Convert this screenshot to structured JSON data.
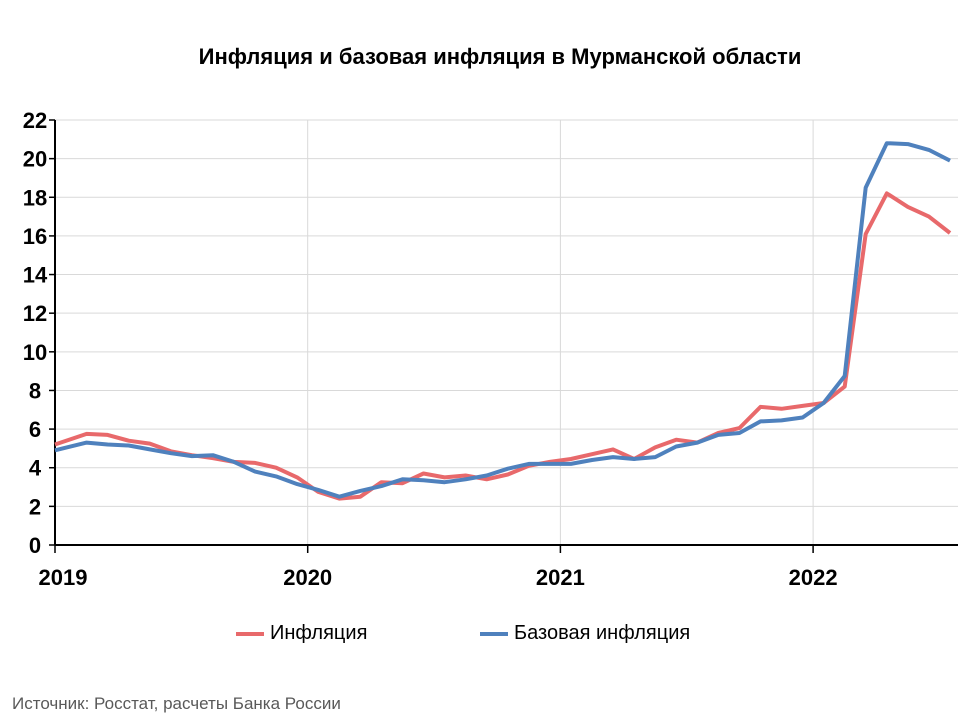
{
  "chart_data": {
    "type": "line",
    "title": "Инфляция и базовая инфляция в Мурманской области",
    "xlabel": "",
    "ylabel": "",
    "ylim": [
      0,
      22
    ],
    "yticks": [
      0,
      2,
      4,
      6,
      8,
      10,
      12,
      14,
      16,
      18,
      20,
      22
    ],
    "xtick_labels": [
      "2019",
      "2020",
      "2021",
      "2022"
    ],
    "x_start": "2019-01",
    "x_end": "2022-07",
    "frequency": "monthly",
    "grid": true,
    "legend_position": "bottom",
    "series": [
      {
        "name": "Инфляция",
        "color": "#E8696B",
        "values": [
          5.2,
          5.75,
          5.7,
          5.4,
          5.25,
          4.85,
          4.65,
          4.5,
          4.3,
          4.25,
          4.0,
          3.5,
          2.75,
          2.4,
          2.5,
          3.25,
          3.2,
          3.7,
          3.5,
          3.6,
          3.4,
          3.65,
          4.1,
          4.3,
          4.45,
          4.7,
          4.95,
          4.45,
          5.05,
          5.45,
          5.3,
          5.8,
          6.05,
          7.15,
          7.05,
          7.2,
          7.35,
          8.2,
          16.1,
          18.2,
          17.5,
          17.0,
          16.15
        ]
      },
      {
        "name": "Базовая инфляция",
        "color": "#4F81BD",
        "values": [
          4.9,
          5.3,
          5.2,
          5.15,
          4.95,
          4.75,
          4.6,
          4.65,
          4.3,
          3.8,
          3.55,
          3.15,
          2.85,
          2.5,
          2.8,
          3.05,
          3.4,
          3.35,
          3.25,
          3.4,
          3.6,
          3.95,
          4.2,
          4.2,
          4.2,
          4.4,
          4.55,
          4.45,
          4.55,
          5.1,
          5.3,
          5.7,
          5.8,
          6.4,
          6.45,
          6.6,
          7.35,
          8.75,
          18.5,
          20.8,
          20.75,
          20.45,
          19.9
        ]
      }
    ]
  },
  "source": "Источник: Росстат, расчеты Банка России"
}
